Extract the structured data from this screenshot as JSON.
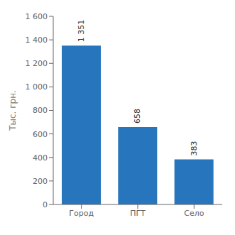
{
  "chart_data": {
    "type": "bar",
    "categories": [
      "Город",
      "ПГТ",
      "Село"
    ],
    "values": [
      1351,
      658,
      383
    ],
    "value_labels": [
      "1 351",
      "658",
      "383"
    ],
    "data_labels": true,
    "color": "#2775BC",
    "ylabel": "Тыс. грн.",
    "ylim": [
      0,
      1600
    ],
    "yticks": [
      0,
      200,
      400,
      600,
      800,
      {
        "value": 1000,
        "label": "1 000"
      },
      {
        "value": 1200,
        "label": "1 200"
      },
      {
        "value": 1400,
        "label": "1 400"
      },
      {
        "value": 1600,
        "label": "1 600"
      }
    ],
    "grid": false
  }
}
